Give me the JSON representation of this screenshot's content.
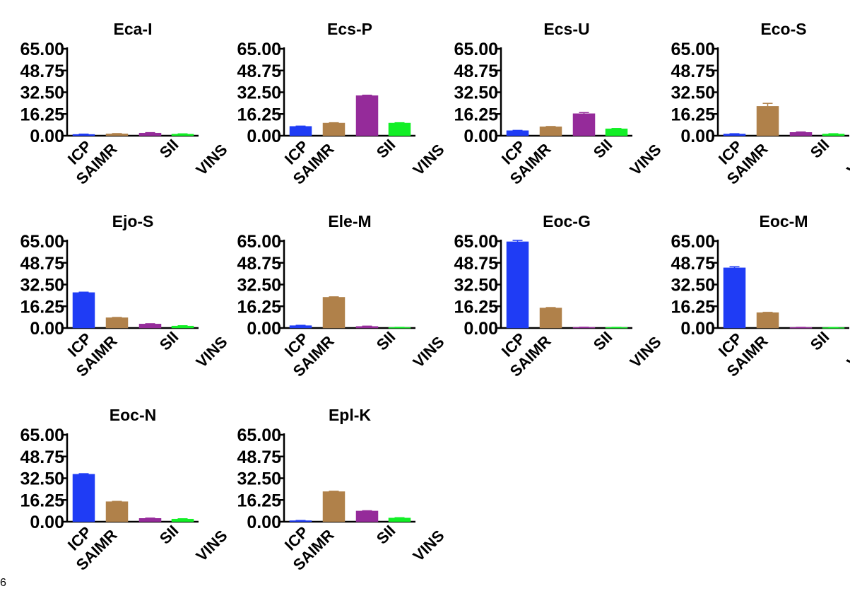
{
  "corner_label": "6",
  "chart_data": [
    {
      "type": "bar",
      "title": "Eca-I",
      "categories": [
        "ICP",
        "SAIMR",
        "SII",
        "VINS"
      ],
      "values": [
        1.0,
        1.4,
        2.0,
        1.2
      ],
      "errors": [
        0.2,
        0.2,
        0.3,
        0.2
      ],
      "y_ticks": [
        "0.00",
        "16.25",
        "32.50",
        "48.75",
        "65.00"
      ],
      "ylim": [
        0,
        65
      ],
      "grid": false
    },
    {
      "type": "bar",
      "title": "Ecs-P",
      "categories": [
        "ICP",
        "SAIMR",
        "SII",
        "VINS"
      ],
      "values": [
        7.0,
        9.5,
        30.0,
        9.5
      ],
      "errors": [
        0.2,
        0.2,
        0.3,
        0.2
      ],
      "y_ticks": [
        "0.00",
        "16.25",
        "32.50",
        "48.75",
        "65.00"
      ],
      "ylim": [
        0,
        65
      ],
      "grid": false
    },
    {
      "type": "bar",
      "title": "Ecs-U",
      "categories": [
        "ICP",
        "SAIMR",
        "SII",
        "VINS"
      ],
      "values": [
        3.8,
        6.7,
        16.5,
        5.2
      ],
      "errors": [
        0.2,
        0.2,
        0.8,
        0.2
      ],
      "y_ticks": [
        "0.00",
        "16.25",
        "32.50",
        "48.75",
        "65.00"
      ],
      "ylim": [
        0,
        65
      ],
      "grid": false
    },
    {
      "type": "bar",
      "title": "Eco-S",
      "categories": [
        "ICP",
        "SAIMR",
        "SII",
        "VINS"
      ],
      "values": [
        1.3,
        22.0,
        2.5,
        1.3
      ],
      "errors": [
        0.2,
        2.2,
        0.3,
        0.2
      ],
      "y_ticks": [
        "0.00",
        "16.25",
        "32.50",
        "48.75",
        "65.00"
      ],
      "ylim": [
        0,
        65
      ],
      "grid": false
    },
    {
      "type": "bar",
      "title": "Ejo-S",
      "categories": [
        "ICP",
        "SAIMR",
        "SII",
        "VINS"
      ],
      "values": [
        26.5,
        7.7,
        3.0,
        1.5
      ],
      "errors": [
        0.3,
        0.2,
        0.2,
        0.2
      ],
      "y_ticks": [
        "0.00",
        "16.25",
        "32.50",
        "48.75",
        "65.00"
      ],
      "ylim": [
        0,
        65
      ],
      "grid": false
    },
    {
      "type": "bar",
      "title": "Ele-M",
      "categories": [
        "ICP",
        "SAIMR",
        "SII",
        "VINS"
      ],
      "values": [
        1.8,
        23.0,
        1.2,
        0.4
      ],
      "errors": [
        0.2,
        0.3,
        0.2,
        0.1
      ],
      "y_ticks": [
        "0.00",
        "16.25",
        "32.50",
        "48.75",
        "65.00"
      ],
      "ylim": [
        0,
        65
      ],
      "grid": false
    },
    {
      "type": "bar",
      "title": "Eoc-G",
      "categories": [
        "ICP",
        "SAIMR",
        "SII",
        "VINS"
      ],
      "values": [
        64.5,
        15.0,
        0.5,
        0.4
      ],
      "errors": [
        1.0,
        0.3,
        0.1,
        0.1
      ],
      "y_ticks": [
        "0.00",
        "16.25",
        "32.50",
        "48.75",
        "65.00"
      ],
      "ylim": [
        0,
        65
      ],
      "grid": false
    },
    {
      "type": "bar",
      "title": "Eoc-M",
      "categories": [
        "ICP",
        "SAIMR",
        "SII",
        "VINS"
      ],
      "values": [
        45.0,
        11.5,
        0.4,
        0.3
      ],
      "errors": [
        0.8,
        0.2,
        0.1,
        0.1
      ],
      "y_ticks": [
        "0.00",
        "16.25",
        "32.50",
        "48.75",
        "65.00"
      ],
      "ylim": [
        0,
        65
      ],
      "grid": false
    },
    {
      "type": "bar",
      "title": "Eoc-N",
      "categories": [
        "ICP",
        "SAIMR",
        "SII",
        "VINS"
      ],
      "values": [
        35.5,
        15.0,
        2.5,
        2.0
      ],
      "errors": [
        0.4,
        0.2,
        0.2,
        0.2
      ],
      "y_ticks": [
        "0.00",
        "16.25",
        "32.50",
        "48.75",
        "65.00"
      ],
      "ylim": [
        0,
        65
      ],
      "grid": false
    },
    {
      "type": "bar",
      "title": "Epl-K",
      "categories": [
        "ICP",
        "SAIMR",
        "SII",
        "VINS"
      ],
      "values": [
        0.8,
        22.5,
        8.0,
        2.8
      ],
      "errors": [
        0.1,
        0.3,
        0.2,
        0.2
      ],
      "y_ticks": [
        "0.00",
        "16.25",
        "32.50",
        "48.75",
        "65.00"
      ],
      "ylim": [
        0,
        65
      ],
      "grid": false
    }
  ],
  "colors": {
    "ICP": "#1f3cf5",
    "SAIMR": "#b0814a",
    "SII": "#952b9a",
    "VINS": "#12ef26"
  }
}
